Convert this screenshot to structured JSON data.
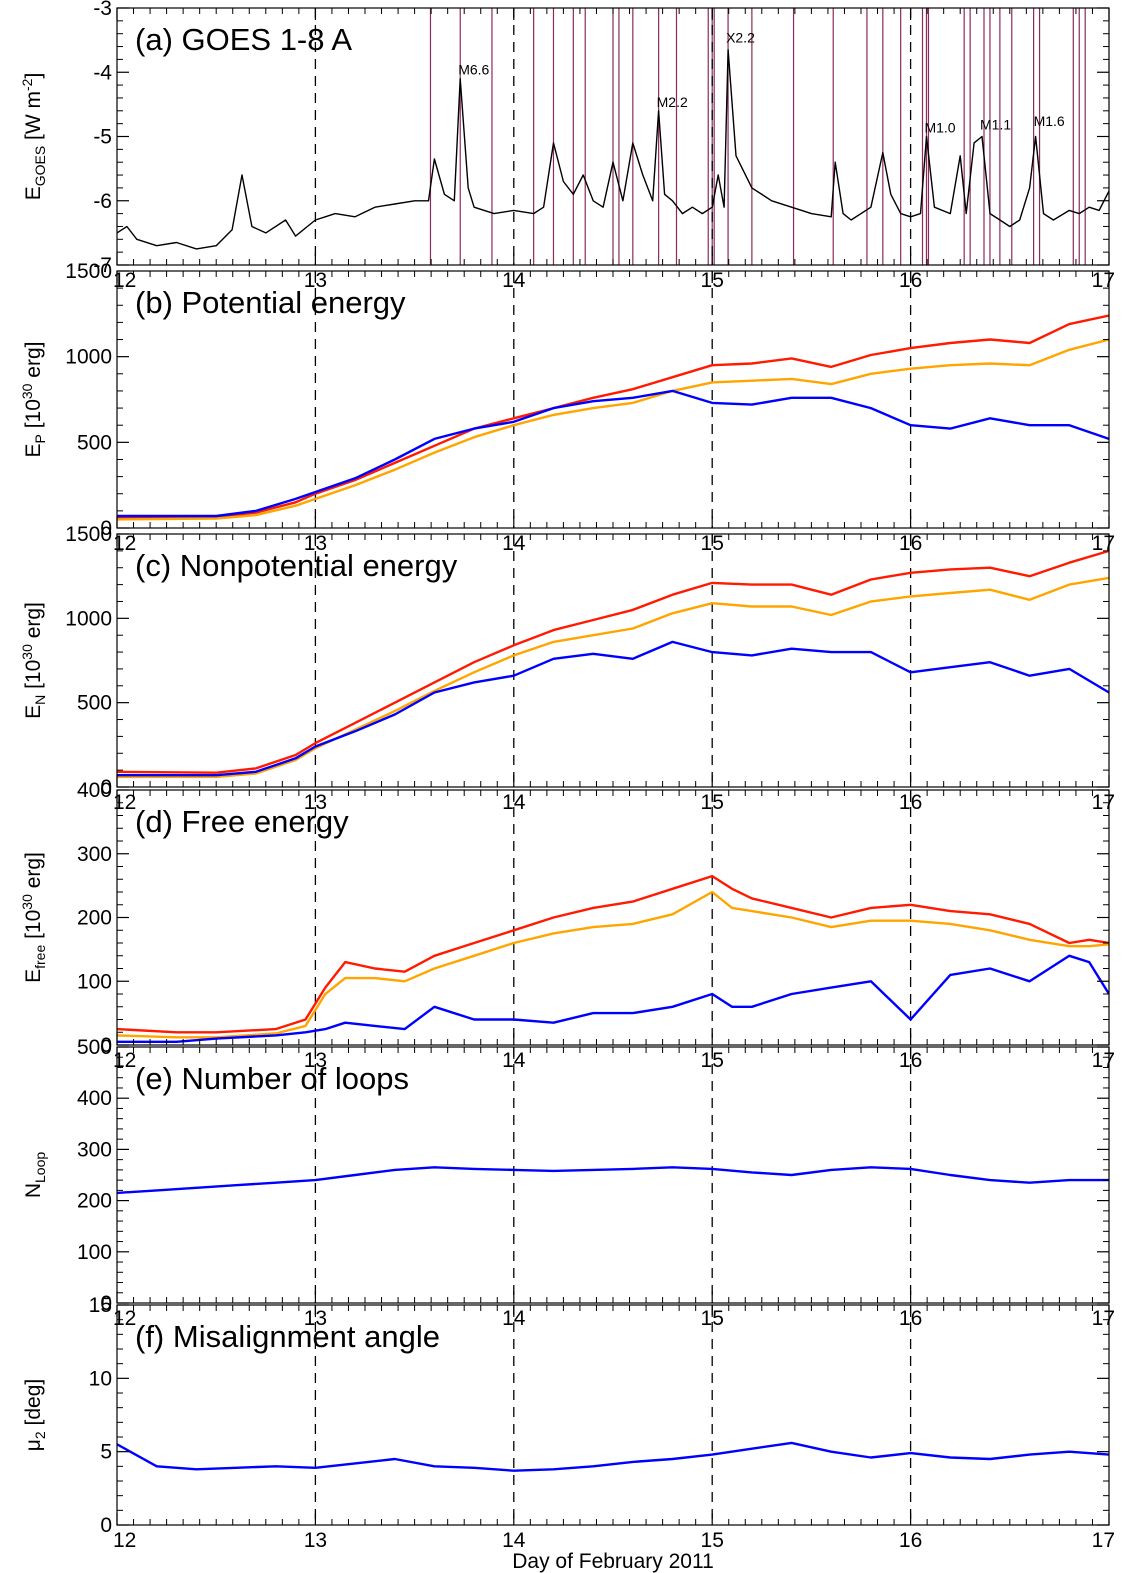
{
  "figure": {
    "xlabel": "Day of February 2011",
    "x_ticks": [
      12,
      13,
      14,
      15,
      16,
      17
    ],
    "x_tick_labels": [
      "12",
      "13",
      "14",
      "15",
      "16",
      "17"
    ],
    "xlim": [
      12,
      17
    ],
    "dashed_days": [
      13,
      14,
      15,
      16
    ],
    "colors": {
      "red": "#ff1a00",
      "orange": "#ffa500",
      "blue": "#0000ff",
      "black": "#000000",
      "flare_lines": "#8a2b5a"
    }
  },
  "chart_data": [
    {
      "id": "a",
      "type": "line",
      "title": "(a) GOES 1-8 A",
      "ylabel": "E_GOES [W m^-2]",
      "ylabel_main": "E",
      "ylabel_sub": "GOES",
      "ylabel_tail": " [W m",
      "ylabel_sup": "-2",
      "ylabel_end": "]",
      "ylim": [
        -7,
        -3
      ],
      "y_ticks": [
        -7,
        -6,
        -5,
        -4,
        -3
      ],
      "y_tick_labels": [
        "-7",
        "-6",
        "-5",
        "-4",
        "-3"
      ],
      "series": [
        {
          "color": "black",
          "x": [
            12.0,
            12.05,
            12.1,
            12.2,
            12.3,
            12.4,
            12.5,
            12.58,
            12.63,
            12.68,
            12.75,
            12.85,
            12.9,
            13.0,
            13.05,
            13.1,
            13.2,
            13.3,
            13.4,
            13.5,
            13.57,
            13.6,
            13.65,
            13.7,
            13.73,
            13.77,
            13.8,
            13.9,
            14.0,
            14.1,
            14.15,
            14.2,
            14.25,
            14.3,
            14.35,
            14.4,
            14.45,
            14.5,
            14.55,
            14.6,
            14.65,
            14.7,
            14.73,
            14.76,
            14.8,
            14.85,
            14.9,
            14.95,
            15.0,
            15.03,
            15.06,
            15.08,
            15.12,
            15.2,
            15.3,
            15.4,
            15.5,
            15.6,
            15.62,
            15.66,
            15.7,
            15.8,
            15.86,
            15.9,
            15.95,
            16.0,
            16.05,
            16.08,
            16.12,
            16.2,
            16.25,
            16.28,
            16.32,
            16.36,
            16.4,
            16.45,
            16.5,
            16.55,
            16.6,
            16.63,
            16.67,
            16.72,
            16.8,
            16.85,
            16.9,
            16.95,
            17.0
          ],
          "y": [
            -6.5,
            -6.4,
            -6.6,
            -6.7,
            -6.65,
            -6.75,
            -6.7,
            -6.45,
            -5.6,
            -6.4,
            -6.5,
            -6.3,
            -6.55,
            -6.3,
            -6.25,
            -6.2,
            -6.25,
            -6.1,
            -6.05,
            -6.0,
            -6.0,
            -5.35,
            -5.9,
            -6.0,
            -4.1,
            -5.8,
            -6.1,
            -6.2,
            -6.15,
            -6.2,
            -6.1,
            -5.1,
            -5.7,
            -5.9,
            -5.6,
            -6.0,
            -6.1,
            -5.4,
            -6.0,
            -5.1,
            -5.6,
            -6.0,
            -4.6,
            -5.9,
            -6.0,
            -6.2,
            -6.1,
            -6.2,
            -6.1,
            -5.6,
            -6.1,
            -3.65,
            -5.3,
            -5.8,
            -6.0,
            -6.1,
            -6.2,
            -6.25,
            -5.4,
            -6.2,
            -6.3,
            -6.1,
            -5.25,
            -5.9,
            -6.2,
            -6.25,
            -6.2,
            -5.0,
            -6.1,
            -6.2,
            -5.3,
            -6.2,
            -5.1,
            -5.0,
            -6.2,
            -6.3,
            -6.4,
            -6.3,
            -5.8,
            -5.0,
            -6.2,
            -6.3,
            -6.15,
            -6.2,
            -6.1,
            -6.15,
            -5.85
          ]
        }
      ],
      "flare_times": [
        13.58,
        13.73,
        13.89,
        14.1,
        14.2,
        14.3,
        14.36,
        14.5,
        14.53,
        14.6,
        14.73,
        14.82,
        14.98,
        15.0,
        15.01,
        15.08,
        15.2,
        15.41,
        15.61,
        15.78,
        15.86,
        15.95,
        16.06,
        16.08,
        16.09,
        16.27,
        16.3,
        16.37,
        16.4,
        16.45,
        16.51,
        16.62,
        16.65,
        16.82,
        16.85,
        16.88
      ],
      "annotations": [
        {
          "text": "M6.6",
          "x": 13.73,
          "y": -4.1
        },
        {
          "text": "M2.2",
          "x": 14.73,
          "y": -4.6
        },
        {
          "text": "X2.2",
          "x": 15.08,
          "y": -3.6
        },
        {
          "text": "M1.0",
          "x": 16.08,
          "y": -5.0
        },
        {
          "text": "M1.1",
          "x": 16.36,
          "y": -4.95
        },
        {
          "text": "M1.6",
          "x": 16.63,
          "y": -4.9
        }
      ]
    },
    {
      "id": "b",
      "type": "line",
      "title": "(b) Potential energy",
      "ylabel_main": "E",
      "ylabel_sub": "P",
      "ylabel_tail": " [10",
      "ylabel_sup": "30",
      "ylabel_end": " erg]",
      "ylim": [
        0,
        1500
      ],
      "y_ticks": [
        0,
        500,
        1000,
        1500
      ],
      "y_tick_labels": [
        "0",
        "500",
        "1000",
        "1500"
      ],
      "series": [
        {
          "color": "red",
          "x": [
            12.0,
            12.5,
            12.7,
            12.9,
            13.0,
            13.2,
            13.4,
            13.6,
            13.8,
            14.0,
            14.2,
            14.4,
            14.6,
            14.8,
            15.0,
            15.2,
            15.4,
            15.6,
            15.8,
            16.0,
            16.2,
            16.4,
            16.6,
            16.8,
            17.0
          ],
          "y": [
            60,
            65,
            90,
            150,
            200,
            280,
            380,
            480,
            580,
            640,
            700,
            760,
            810,
            880,
            950,
            960,
            990,
            940,
            1010,
            1050,
            1080,
            1100,
            1080,
            1190,
            1240
          ]
        },
        {
          "color": "orange",
          "x": [
            12.0,
            12.5,
            12.7,
            12.9,
            13.0,
            13.2,
            13.4,
            13.6,
            13.8,
            14.0,
            14.2,
            14.4,
            14.6,
            14.8,
            15.0,
            15.2,
            15.4,
            15.6,
            15.8,
            16.0,
            16.2,
            16.4,
            16.6,
            16.8,
            17.0
          ],
          "y": [
            50,
            55,
            75,
            130,
            170,
            250,
            340,
            440,
            530,
            600,
            660,
            700,
            730,
            800,
            850,
            860,
            870,
            840,
            900,
            930,
            950,
            960,
            950,
            1040,
            1100
          ]
        },
        {
          "color": "blue",
          "x": [
            12.0,
            12.5,
            12.7,
            12.9,
            13.0,
            13.2,
            13.4,
            13.6,
            13.8,
            14.0,
            14.2,
            14.4,
            14.6,
            14.8,
            15.0,
            15.2,
            15.4,
            15.6,
            15.8,
            16.0,
            16.2,
            16.4,
            16.6,
            16.8,
            17.0
          ],
          "y": [
            70,
            70,
            100,
            170,
            210,
            290,
            400,
            520,
            580,
            620,
            700,
            740,
            760,
            800,
            730,
            720,
            760,
            760,
            700,
            600,
            580,
            640,
            600,
            600,
            520
          ]
        }
      ]
    },
    {
      "id": "c",
      "type": "line",
      "title": "(c) Nonpotential energy",
      "ylabel_main": "E",
      "ylabel_sub": "N",
      "ylabel_tail": " [10",
      "ylabel_sup": "30",
      "ylabel_end": " erg]",
      "ylim": [
        0,
        1500
      ],
      "y_ticks": [
        0,
        500,
        1000,
        1500
      ],
      "y_tick_labels": [
        "0",
        "500",
        "1000",
        "1500"
      ],
      "series": [
        {
          "color": "red",
          "x": [
            12.0,
            12.5,
            12.7,
            12.9,
            13.0,
            13.2,
            13.4,
            13.6,
            13.8,
            14.0,
            14.2,
            14.4,
            14.6,
            14.8,
            15.0,
            15.2,
            15.4,
            15.6,
            15.8,
            16.0,
            16.2,
            16.4,
            16.6,
            16.8,
            17.0
          ],
          "y": [
            90,
            85,
            110,
            190,
            260,
            380,
            500,
            620,
            740,
            840,
            930,
            990,
            1050,
            1140,
            1210,
            1200,
            1200,
            1140,
            1230,
            1270,
            1290,
            1300,
            1250,
            1330,
            1400
          ]
        },
        {
          "color": "orange",
          "x": [
            12.0,
            12.5,
            12.7,
            12.9,
            13.0,
            13.2,
            13.4,
            13.6,
            13.8,
            14.0,
            14.2,
            14.4,
            14.6,
            14.8,
            15.0,
            15.2,
            15.4,
            15.6,
            15.8,
            16.0,
            16.2,
            16.4,
            16.6,
            16.8,
            17.0
          ],
          "y": [
            60,
            60,
            80,
            160,
            230,
            340,
            450,
            570,
            680,
            780,
            860,
            900,
            940,
            1030,
            1090,
            1070,
            1070,
            1020,
            1100,
            1130,
            1150,
            1170,
            1110,
            1200,
            1240
          ]
        },
        {
          "color": "blue",
          "x": [
            12.0,
            12.5,
            12.7,
            12.9,
            13.0,
            13.2,
            13.4,
            13.6,
            13.8,
            14.0,
            14.2,
            14.4,
            14.6,
            14.8,
            15.0,
            15.2,
            15.4,
            15.6,
            15.8,
            16.0,
            16.2,
            16.4,
            16.6,
            16.8,
            17.0
          ],
          "y": [
            70,
            70,
            90,
            170,
            240,
            330,
            430,
            560,
            620,
            660,
            760,
            790,
            760,
            860,
            800,
            780,
            820,
            800,
            800,
            680,
            710,
            740,
            660,
            700,
            560
          ]
        }
      ]
    },
    {
      "id": "d",
      "type": "line",
      "title": "(d) Free energy",
      "ylabel_main": "E",
      "ylabel_sub": "free",
      "ylabel_tail": " [10",
      "ylabel_sup": "30",
      "ylabel_end": " erg]",
      "ylim": [
        0,
        400
      ],
      "y_ticks": [
        0,
        100,
        200,
        300,
        400
      ],
      "y_tick_labels": [
        "0",
        "100",
        "200",
        "300",
        "400"
      ],
      "series": [
        {
          "color": "red",
          "x": [
            12.0,
            12.3,
            12.5,
            12.8,
            12.95,
            13.05,
            13.15,
            13.3,
            13.45,
            13.6,
            13.8,
            14.0,
            14.2,
            14.4,
            14.6,
            14.8,
            15.0,
            15.1,
            15.2,
            15.4,
            15.6,
            15.8,
            16.0,
            16.2,
            16.4,
            16.6,
            16.8,
            16.9,
            17.0
          ],
          "y": [
            25,
            20,
            20,
            25,
            40,
            90,
            130,
            120,
            115,
            140,
            160,
            180,
            200,
            215,
            225,
            245,
            265,
            245,
            230,
            215,
            200,
            215,
            220,
            210,
            205,
            190,
            160,
            165,
            160
          ]
        },
        {
          "color": "orange",
          "x": [
            12.0,
            12.3,
            12.5,
            12.8,
            12.95,
            13.05,
            13.15,
            13.3,
            13.45,
            13.6,
            13.8,
            14.0,
            14.2,
            14.4,
            14.6,
            14.8,
            15.0,
            15.1,
            15.2,
            15.4,
            15.6,
            15.8,
            16.0,
            16.2,
            16.4,
            16.6,
            16.8,
            16.9,
            17.0
          ],
          "y": [
            15,
            12,
            12,
            18,
            30,
            80,
            105,
            105,
            100,
            120,
            140,
            160,
            175,
            185,
            190,
            205,
            240,
            215,
            210,
            200,
            185,
            195,
            195,
            190,
            180,
            165,
            155,
            155,
            158
          ]
        },
        {
          "color": "blue",
          "x": [
            12.0,
            12.3,
            12.5,
            12.8,
            12.95,
            13.05,
            13.15,
            13.3,
            13.45,
            13.6,
            13.8,
            14.0,
            14.2,
            14.4,
            14.6,
            14.8,
            15.0,
            15.1,
            15.2,
            15.4,
            15.6,
            15.8,
            16.0,
            16.2,
            16.4,
            16.6,
            16.8,
            16.9,
            17.0
          ],
          "y": [
            5,
            5,
            10,
            15,
            20,
            25,
            35,
            30,
            25,
            60,
            40,
            40,
            35,
            50,
            50,
            60,
            80,
            60,
            60,
            80,
            90,
            100,
            40,
            110,
            120,
            100,
            140,
            130,
            80
          ]
        }
      ]
    },
    {
      "id": "e",
      "type": "line",
      "title": "(e) Number of loops",
      "ylabel_main": "N",
      "ylabel_sub": "Loop",
      "ylabel_tail": "",
      "ylabel_sup": "",
      "ylabel_end": "",
      "ylim": [
        0,
        500
      ],
      "y_ticks": [
        0,
        100,
        200,
        300,
        400,
        500
      ],
      "y_tick_labels": [
        "0",
        "100",
        "200",
        "300",
        "400",
        "500"
      ],
      "series": [
        {
          "color": "blue",
          "x": [
            12.0,
            12.2,
            12.4,
            12.6,
            12.8,
            13.0,
            13.2,
            13.4,
            13.6,
            13.8,
            14.0,
            14.2,
            14.4,
            14.6,
            14.8,
            15.0,
            15.2,
            15.4,
            15.6,
            15.8,
            16.0,
            16.2,
            16.4,
            16.6,
            16.8,
            17.0
          ],
          "y": [
            215,
            220,
            225,
            230,
            235,
            240,
            250,
            260,
            265,
            262,
            260,
            258,
            260,
            262,
            265,
            262,
            255,
            250,
            260,
            265,
            262,
            250,
            240,
            235,
            240,
            240
          ]
        }
      ]
    },
    {
      "id": "f",
      "type": "line",
      "title": "(f) Misalignment angle",
      "ylabel_main": "μ",
      "ylabel_sub": "2",
      "ylabel_tail": " [deg]",
      "ylabel_sup": "",
      "ylabel_end": "",
      "ylim": [
        0,
        15
      ],
      "y_ticks": [
        0,
        5,
        10,
        15
      ],
      "y_tick_labels": [
        "0",
        "5",
        "10",
        "15"
      ],
      "series": [
        {
          "color": "blue",
          "x": [
            12.0,
            12.2,
            12.4,
            12.6,
            12.8,
            13.0,
            13.2,
            13.4,
            13.6,
            13.8,
            14.0,
            14.2,
            14.4,
            14.6,
            14.8,
            15.0,
            15.2,
            15.4,
            15.6,
            15.8,
            16.0,
            16.2,
            16.4,
            16.6,
            16.8,
            17.0
          ],
          "y": [
            5.5,
            4.0,
            3.8,
            3.9,
            4.0,
            3.9,
            4.2,
            4.5,
            4.0,
            3.9,
            3.7,
            3.8,
            4.0,
            4.3,
            4.5,
            4.8,
            5.2,
            5.6,
            5.0,
            4.6,
            4.9,
            4.6,
            4.5,
            4.8,
            5.0,
            4.8
          ]
        }
      ]
    }
  ]
}
